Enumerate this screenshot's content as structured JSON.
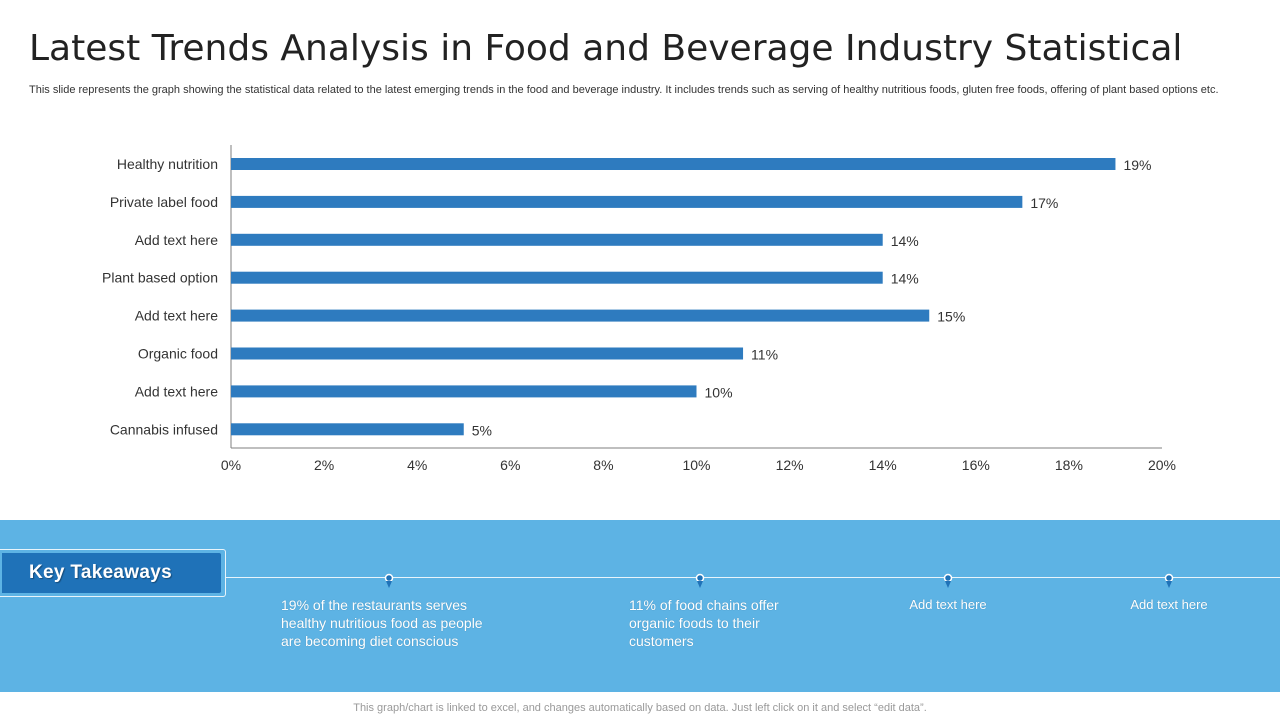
{
  "header": {
    "title": "Latest Trends Analysis in Food and Beverage Industry Statistical",
    "subtitle": "This slide represents the graph showing the statistical data related to the latest emerging trends in the food and beverage industry. It includes trends such as serving of healthy nutritious foods, gluten free foods, offering of plant based options etc."
  },
  "chart_data": {
    "type": "bar",
    "orientation": "horizontal",
    "categories": [
      "Healthy nutrition",
      "Private label food",
      "Add text here",
      "Plant based option",
      "Add text here",
      "Organic food",
      "Add text here",
      "Cannabis infused"
    ],
    "values": [
      19,
      17,
      14,
      14,
      15,
      11,
      10,
      5
    ],
    "value_labels": [
      "19%",
      "17%",
      "14%",
      "14%",
      "15%",
      "11%",
      "10%",
      "5%"
    ],
    "x_ticks": [
      "0%",
      "2%",
      "4%",
      "6%",
      "8%",
      "10%",
      "12%",
      "14%",
      "16%",
      "18%",
      "20%"
    ],
    "xlim": [
      0,
      20
    ],
    "title": "",
    "xlabel": "",
    "ylabel": "",
    "grid": false,
    "bar_color": "#2e7bbf"
  },
  "takeaways": {
    "label": "Key Takeaways",
    "items": [
      {
        "text": "19% of the restaurants serves healthy nutritious food as people are becoming diet conscious"
      },
      {
        "text": "11% of food chains offer organic foods to their customers"
      },
      {
        "text": "Add text here"
      },
      {
        "text": "Add text here"
      }
    ]
  },
  "footer": {
    "note": "This graph/chart is linked to excel,  and changes automatically based on data. Just left click on it and select “edit data”."
  },
  "colors": {
    "band": "#5db3e4",
    "accent": "#1f72b8",
    "bar": "#2e7bbf"
  }
}
